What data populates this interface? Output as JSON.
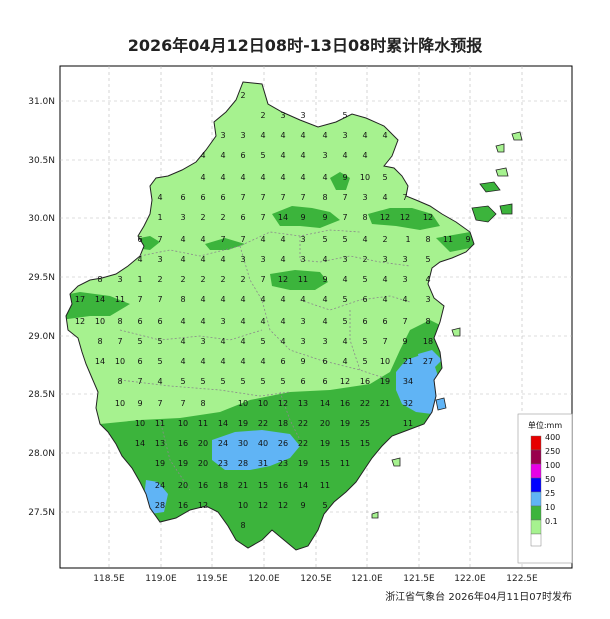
{
  "title": "2026年04月12日08时-13日08时累计降水预报",
  "footer": "浙江省气象台  2026年04月11日07时发布",
  "lat_labels": [
    "31.0N",
    "30.5N",
    "30.0N",
    "29.5N",
    "29.0N",
    "28.5N",
    "28.0N",
    "27.5N"
  ],
  "lon_labels": [
    "118.5E",
    "119.0E",
    "119.5E",
    "120.0E",
    "120.5E",
    "121.0E",
    "121.5E",
    "122.0E",
    "122.5E"
  ],
  "legend": {
    "title": "单位:mm",
    "levels": [
      {
        "label": "400",
        "color": "#e60000"
      },
      {
        "label": "250",
        "color": "#99004d"
      },
      {
        "label": "100",
        "color": "#e600e6"
      },
      {
        "label": "50",
        "color": "#0000ff"
      },
      {
        "label": "25",
        "color": "#60b4f5"
      },
      {
        "label": "10",
        "color": "#3cb43c"
      },
      {
        "label": "0.1",
        "color": "#a6f28f"
      }
    ],
    "bottom_color": "#ffffff"
  },
  "colors": {
    "light": "#a6f28f",
    "mid": "#3cb43c",
    "heavy": "#60b4f5"
  },
  "values": [
    [
      "2",
      243,
      98
    ],
    [
      "2",
      263,
      118
    ],
    [
      "3",
      283,
      118
    ],
    [
      "3",
      303,
      118
    ],
    [
      "5",
      345,
      118
    ],
    [
      "3",
      223,
      138
    ],
    [
      "3",
      243,
      138
    ],
    [
      "4",
      263,
      138
    ],
    [
      "4",
      283,
      138
    ],
    [
      "4",
      303,
      138
    ],
    [
      "4",
      325,
      138
    ],
    [
      "3",
      345,
      138
    ],
    [
      "4",
      365,
      138
    ],
    [
      "4",
      385,
      138
    ],
    [
      "4",
      203,
      158
    ],
    [
      "4",
      223,
      158
    ],
    [
      "6",
      243,
      158
    ],
    [
      "5",
      263,
      158
    ],
    [
      "4",
      283,
      158
    ],
    [
      "4",
      303,
      158
    ],
    [
      "3",
      325,
      158
    ],
    [
      "4",
      345,
      158
    ],
    [
      "4",
      365,
      158
    ],
    [
      "4",
      203,
      180
    ],
    [
      "4",
      223,
      180
    ],
    [
      "4",
      243,
      180
    ],
    [
      "4",
      263,
      180
    ],
    [
      "4",
      283,
      180
    ],
    [
      "4",
      303,
      180
    ],
    [
      "4",
      325,
      180
    ],
    [
      "9",
      345,
      180
    ],
    [
      "10",
      365,
      180
    ],
    [
      "5",
      385,
      180
    ],
    [
      "4",
      160,
      200
    ],
    [
      "6",
      183,
      200
    ],
    [
      "6",
      203,
      200
    ],
    [
      "6",
      223,
      200
    ],
    [
      "7",
      243,
      200
    ],
    [
      "7",
      263,
      200
    ],
    [
      "7",
      283,
      200
    ],
    [
      "7",
      303,
      200
    ],
    [
      "8",
      325,
      200
    ],
    [
      "7",
      345,
      200
    ],
    [
      "3",
      365,
      200
    ],
    [
      "4",
      385,
      200
    ],
    [
      "7",
      405,
      200
    ],
    [
      "1",
      160,
      220
    ],
    [
      "3",
      183,
      220
    ],
    [
      "2",
      203,
      220
    ],
    [
      "2",
      223,
      220
    ],
    [
      "6",
      243,
      220
    ],
    [
      "7",
      263,
      220
    ],
    [
      "14",
      283,
      220
    ],
    [
      "9",
      303,
      220
    ],
    [
      "9",
      325,
      220
    ],
    [
      "7",
      345,
      220
    ],
    [
      "8",
      365,
      220
    ],
    [
      "12",
      385,
      220
    ],
    [
      "12",
      405,
      220
    ],
    [
      "12",
      428,
      220
    ],
    [
      "6",
      140,
      242
    ],
    [
      "7",
      160,
      242
    ],
    [
      "4",
      183,
      242
    ],
    [
      "4",
      203,
      242
    ],
    [
      "7",
      223,
      242
    ],
    [
      "7",
      243,
      242
    ],
    [
      "4",
      263,
      242
    ],
    [
      "4",
      283,
      242
    ],
    [
      "3",
      303,
      242
    ],
    [
      "5",
      325,
      242
    ],
    [
      "5",
      345,
      242
    ],
    [
      "4",
      365,
      242
    ],
    [
      "2",
      385,
      242
    ],
    [
      "1",
      408,
      242
    ],
    [
      "8",
      428,
      242
    ],
    [
      "11",
      448,
      242
    ],
    [
      "9",
      468,
      242
    ],
    [
      "4",
      140,
      262
    ],
    [
      "3",
      160,
      262
    ],
    [
      "4",
      183,
      262
    ],
    [
      "4",
      203,
      262
    ],
    [
      "4",
      223,
      262
    ],
    [
      "3",
      243,
      262
    ],
    [
      "3",
      263,
      262
    ],
    [
      "4",
      283,
      262
    ],
    [
      "3",
      303,
      262
    ],
    [
      "4",
      325,
      262
    ],
    [
      "3",
      345,
      262
    ],
    [
      "2",
      365,
      262
    ],
    [
      "3",
      385,
      262
    ],
    [
      "3",
      405,
      262
    ],
    [
      "5",
      428,
      262
    ],
    [
      "8",
      100,
      282
    ],
    [
      "3",
      120,
      282
    ],
    [
      "1",
      140,
      282
    ],
    [
      "2",
      160,
      282
    ],
    [
      "2",
      183,
      282
    ],
    [
      "2",
      203,
      282
    ],
    [
      "2",
      223,
      282
    ],
    [
      "2",
      243,
      282
    ],
    [
      "7",
      263,
      282
    ],
    [
      "12",
      283,
      282
    ],
    [
      "11",
      303,
      282
    ],
    [
      "9",
      325,
      282
    ],
    [
      "4",
      345,
      282
    ],
    [
      "5",
      365,
      282
    ],
    [
      "4",
      385,
      282
    ],
    [
      "3",
      405,
      282
    ],
    [
      "4",
      428,
      282
    ],
    [
      "17",
      80,
      302
    ],
    [
      "14",
      100,
      302
    ],
    [
      "11",
      120,
      302
    ],
    [
      "7",
      140,
      302
    ],
    [
      "7",
      160,
      302
    ],
    [
      "8",
      183,
      302
    ],
    [
      "4",
      203,
      302
    ],
    [
      "4",
      223,
      302
    ],
    [
      "4",
      243,
      302
    ],
    [
      "4",
      263,
      302
    ],
    [
      "4",
      283,
      302
    ],
    [
      "4",
      303,
      302
    ],
    [
      "4",
      325,
      302
    ],
    [
      "5",
      345,
      302
    ],
    [
      "6",
      365,
      302
    ],
    [
      "4",
      385,
      302
    ],
    [
      "4",
      405,
      302
    ],
    [
      "3",
      428,
      302
    ],
    [
      "12",
      80,
      324
    ],
    [
      "10",
      100,
      324
    ],
    [
      "8",
      120,
      324
    ],
    [
      "6",
      140,
      324
    ],
    [
      "6",
      160,
      324
    ],
    [
      "4",
      183,
      324
    ],
    [
      "4",
      203,
      324
    ],
    [
      "3",
      223,
      324
    ],
    [
      "4",
      243,
      324
    ],
    [
      "4",
      263,
      324
    ],
    [
      "4",
      283,
      324
    ],
    [
      "3",
      303,
      324
    ],
    [
      "4",
      325,
      324
    ],
    [
      "5",
      345,
      324
    ],
    [
      "6",
      365,
      324
    ],
    [
      "6",
      385,
      324
    ],
    [
      "7",
      405,
      324
    ],
    [
      "8",
      428,
      324
    ],
    [
      "8",
      100,
      344
    ],
    [
      "7",
      120,
      344
    ],
    [
      "5",
      140,
      344
    ],
    [
      "5",
      160,
      344
    ],
    [
      "4",
      183,
      344
    ],
    [
      "3",
      203,
      344
    ],
    [
      "4",
      223,
      344
    ],
    [
      "4",
      243,
      344
    ],
    [
      "5",
      263,
      344
    ],
    [
      "4",
      283,
      344
    ],
    [
      "3",
      303,
      344
    ],
    [
      "3",
      325,
      344
    ],
    [
      "4",
      345,
      344
    ],
    [
      "5",
      365,
      344
    ],
    [
      "7",
      385,
      344
    ],
    [
      "9",
      405,
      344
    ],
    [
      "18",
      428,
      344
    ],
    [
      "14",
      100,
      364
    ],
    [
      "10",
      120,
      364
    ],
    [
      "6",
      140,
      364
    ],
    [
      "5",
      160,
      364
    ],
    [
      "4",
      183,
      364
    ],
    [
      "4",
      203,
      364
    ],
    [
      "4",
      223,
      364
    ],
    [
      "4",
      243,
      364
    ],
    [
      "4",
      263,
      364
    ],
    [
      "6",
      283,
      364
    ],
    [
      "9",
      303,
      364
    ],
    [
      "6",
      325,
      364
    ],
    [
      "4",
      345,
      364
    ],
    [
      "5",
      365,
      364
    ],
    [
      "10",
      385,
      364
    ],
    [
      "21",
      408,
      364
    ],
    [
      "27",
      428,
      364
    ],
    [
      "8",
      120,
      384
    ],
    [
      "7",
      140,
      384
    ],
    [
      "4",
      160,
      384
    ],
    [
      "5",
      183,
      384
    ],
    [
      "5",
      203,
      384
    ],
    [
      "5",
      223,
      384
    ],
    [
      "5",
      243,
      384
    ],
    [
      "5",
      263,
      384
    ],
    [
      "5",
      283,
      384
    ],
    [
      "6",
      303,
      384
    ],
    [
      "6",
      325,
      384
    ],
    [
      "12",
      345,
      384
    ],
    [
      "16",
      365,
      384
    ],
    [
      "19",
      385,
      384
    ],
    [
      "34",
      408,
      384
    ],
    [
      "10",
      120,
      406
    ],
    [
      "9",
      140,
      406
    ],
    [
      "7",
      160,
      406
    ],
    [
      "7",
      183,
      406
    ],
    [
      "8",
      203,
      406
    ],
    [
      "10",
      243,
      406
    ],
    [
      "10",
      263,
      406
    ],
    [
      "12",
      283,
      406
    ],
    [
      "13",
      303,
      406
    ],
    [
      "14",
      325,
      406
    ],
    [
      "16",
      345,
      406
    ],
    [
      "22",
      365,
      406
    ],
    [
      "21",
      385,
      406
    ],
    [
      "32",
      408,
      406
    ],
    [
      "10",
      140,
      426
    ],
    [
      "11",
      160,
      426
    ],
    [
      "10",
      183,
      426
    ],
    [
      "11",
      203,
      426
    ],
    [
      "14",
      223,
      426
    ],
    [
      "19",
      243,
      426
    ],
    [
      "22",
      263,
      426
    ],
    [
      "18",
      283,
      426
    ],
    [
      "22",
      303,
      426
    ],
    [
      "20",
      325,
      426
    ],
    [
      "19",
      345,
      426
    ],
    [
      "25",
      365,
      426
    ],
    [
      "11",
      408,
      426
    ],
    [
      "14",
      140,
      446
    ],
    [
      "13",
      160,
      446
    ],
    [
      "16",
      183,
      446
    ],
    [
      "20",
      203,
      446
    ],
    [
      "24",
      223,
      446
    ],
    [
      "30",
      243,
      446
    ],
    [
      "40",
      263,
      446
    ],
    [
      "26",
      283,
      446
    ],
    [
      "22",
      303,
      446
    ],
    [
      "19",
      325,
      446
    ],
    [
      "15",
      345,
      446
    ],
    [
      "15",
      365,
      446
    ],
    [
      "19",
      160,
      466
    ],
    [
      "19",
      183,
      466
    ],
    [
      "20",
      203,
      466
    ],
    [
      "23",
      223,
      466
    ],
    [
      "28",
      243,
      466
    ],
    [
      "31",
      263,
      466
    ],
    [
      "23",
      283,
      466
    ],
    [
      "19",
      303,
      466
    ],
    [
      "15",
      325,
      466
    ],
    [
      "11",
      345,
      466
    ],
    [
      "24",
      160,
      488
    ],
    [
      "20",
      183,
      488
    ],
    [
      "16",
      203,
      488
    ],
    [
      "18",
      223,
      488
    ],
    [
      "21",
      243,
      488
    ],
    [
      "15",
      263,
      488
    ],
    [
      "16",
      283,
      488
    ],
    [
      "14",
      303,
      488
    ],
    [
      "11",
      325,
      488
    ],
    [
      "28",
      160,
      508
    ],
    [
      "16",
      183,
      508
    ],
    [
      "12",
      203,
      508
    ],
    [
      "10",
      243,
      508
    ],
    [
      "12",
      263,
      508
    ],
    [
      "12",
      283,
      508
    ],
    [
      "9",
      303,
      508
    ],
    [
      "5",
      325,
      508
    ],
    [
      "8",
      243,
      528
    ]
  ]
}
